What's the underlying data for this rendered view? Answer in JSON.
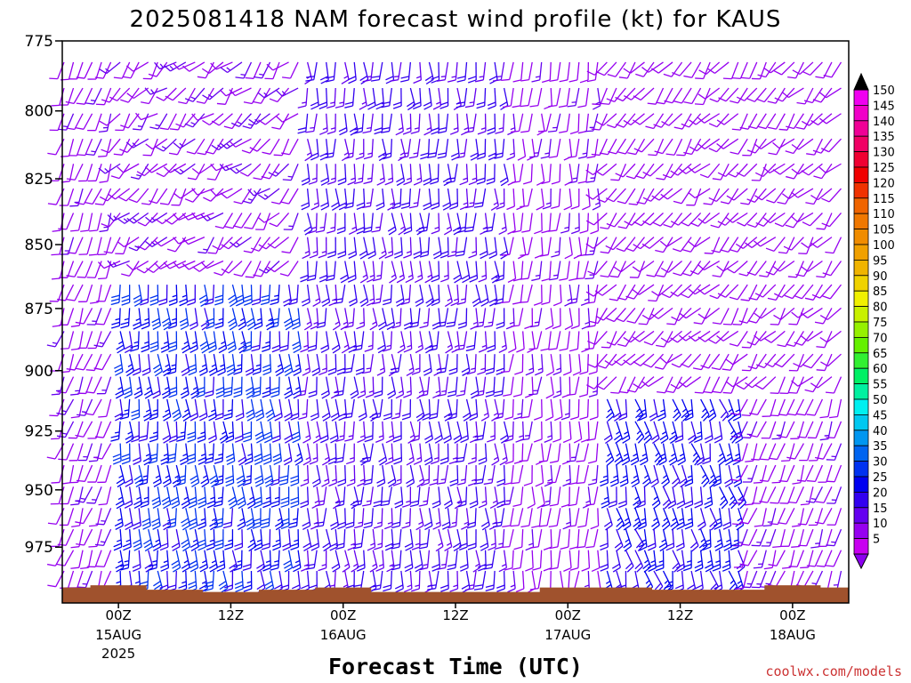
{
  "chart_data": {
    "type": "wind-barb-profile",
    "title": "2025081418 NAM forecast wind profile (kt) for KAUS",
    "xlabel": "Forecast Time (UTC)",
    "credit": "coolwx.com/models",
    "y_axis": {
      "ticks": [
        "775",
        "800",
        "825",
        "850",
        "875",
        "900",
        "925",
        "950",
        "975"
      ],
      "range_hpa": [
        775,
        1000
      ],
      "inverted": true
    },
    "x_axis": {
      "ticks": [
        {
          "hour": 6,
          "l1": "00Z",
          "l2": "15AUG",
          "l3": "2025"
        },
        {
          "hour": 18,
          "l1": "12Z",
          "l2": "",
          "l3": ""
        },
        {
          "hour": 30,
          "l1": "00Z",
          "l2": "16AUG",
          "l3": ""
        },
        {
          "hour": 42,
          "l1": "12Z",
          "l2": "",
          "l3": ""
        },
        {
          "hour": 54,
          "l1": "00Z",
          "l2": "17AUG",
          "l3": ""
        },
        {
          "hour": 66,
          "l1": "12Z",
          "l2": "",
          "l3": ""
        },
        {
          "hour": 78,
          "l1": "00Z",
          "l2": "18AUG",
          "l3": ""
        }
      ],
      "range_hours": [
        0,
        84
      ]
    },
    "colorbar": {
      "labels": [
        "150",
        "145",
        "140",
        "135",
        "130",
        "125",
        "120",
        "115",
        "110",
        "105",
        "100",
        "95",
        "90",
        "85",
        "80",
        "75",
        "70",
        "65",
        "60",
        "55",
        "50",
        "45",
        "40",
        "35",
        "30",
        "25",
        "20",
        "15",
        "10",
        "5"
      ],
      "colors": [
        "#f000f0",
        "#f000c8",
        "#f00096",
        "#f00064",
        "#f00032",
        "#f00000",
        "#f03200",
        "#f06400",
        "#f07800",
        "#f08c00",
        "#f0a000",
        "#f0b400",
        "#f0d200",
        "#f0f000",
        "#c8f000",
        "#96f000",
        "#64f000",
        "#32f032",
        "#00f064",
        "#00f0a0",
        "#00f0f0",
        "#00c8f0",
        "#0096f0",
        "#0064f0",
        "#0032f0",
        "#0000f0",
        "#3200f0",
        "#6400f0",
        "#9600f0",
        "#c800f0"
      ]
    },
    "wind_regimes": [
      {
        "hours": [
          0,
          6
        ],
        "p_range": [
          780,
          990
        ],
        "speed_kt": [
          8,
          14
        ],
        "dir_deg": [
          190,
          210
        ]
      },
      {
        "hours": [
          6,
          26
        ],
        "p_range": [
          860,
          990
        ],
        "speed_kt": [
          20,
          32
        ],
        "dir_deg": [
          165,
          185
        ]
      },
      {
        "hours": [
          6,
          26
        ],
        "p_range": [
          780,
          860
        ],
        "speed_kt": [
          8,
          14
        ],
        "dir_deg": [
          200,
          250
        ]
      },
      {
        "hours": [
          26,
          48
        ],
        "p_range": [
          780,
          990
        ],
        "speed_kt": [
          14,
          22
        ],
        "dir_deg": [
          165,
          190
        ]
      },
      {
        "hours": [
          48,
          58
        ],
        "p_range": [
          780,
          990
        ],
        "speed_kt": [
          8,
          14
        ],
        "dir_deg": [
          170,
          195
        ]
      },
      {
        "hours": [
          58,
          72
        ],
        "p_range": [
          900,
          990
        ],
        "speed_kt": [
          20,
          26
        ],
        "dir_deg": [
          150,
          180
        ]
      },
      {
        "hours": [
          58,
          84
        ],
        "p_range": [
          780,
          900
        ],
        "speed_kt": [
          8,
          12
        ],
        "dir_deg": [
          200,
          240
        ]
      }
    ],
    "surface_pressure_hpa": [
      {
        "hour": 0,
        "p": 993
      },
      {
        "hour": 6,
        "p": 992
      },
      {
        "hour": 12,
        "p": 994
      },
      {
        "hour": 18,
        "p": 995
      },
      {
        "hour": 24,
        "p": 994
      },
      {
        "hour": 30,
        "p": 993
      },
      {
        "hour": 36,
        "p": 995
      },
      {
        "hour": 42,
        "p": 995
      },
      {
        "hour": 48,
        "p": 995
      },
      {
        "hour": 54,
        "p": 993
      },
      {
        "hour": 60,
        "p": 993
      },
      {
        "hour": 66,
        "p": 994
      },
      {
        "hour": 72,
        "p": 994
      },
      {
        "hour": 78,
        "p": 992
      },
      {
        "hour": 84,
        "p": 993
      }
    ],
    "terrain_color": "#a0522d",
    "grid": false,
    "legend": "right"
  }
}
